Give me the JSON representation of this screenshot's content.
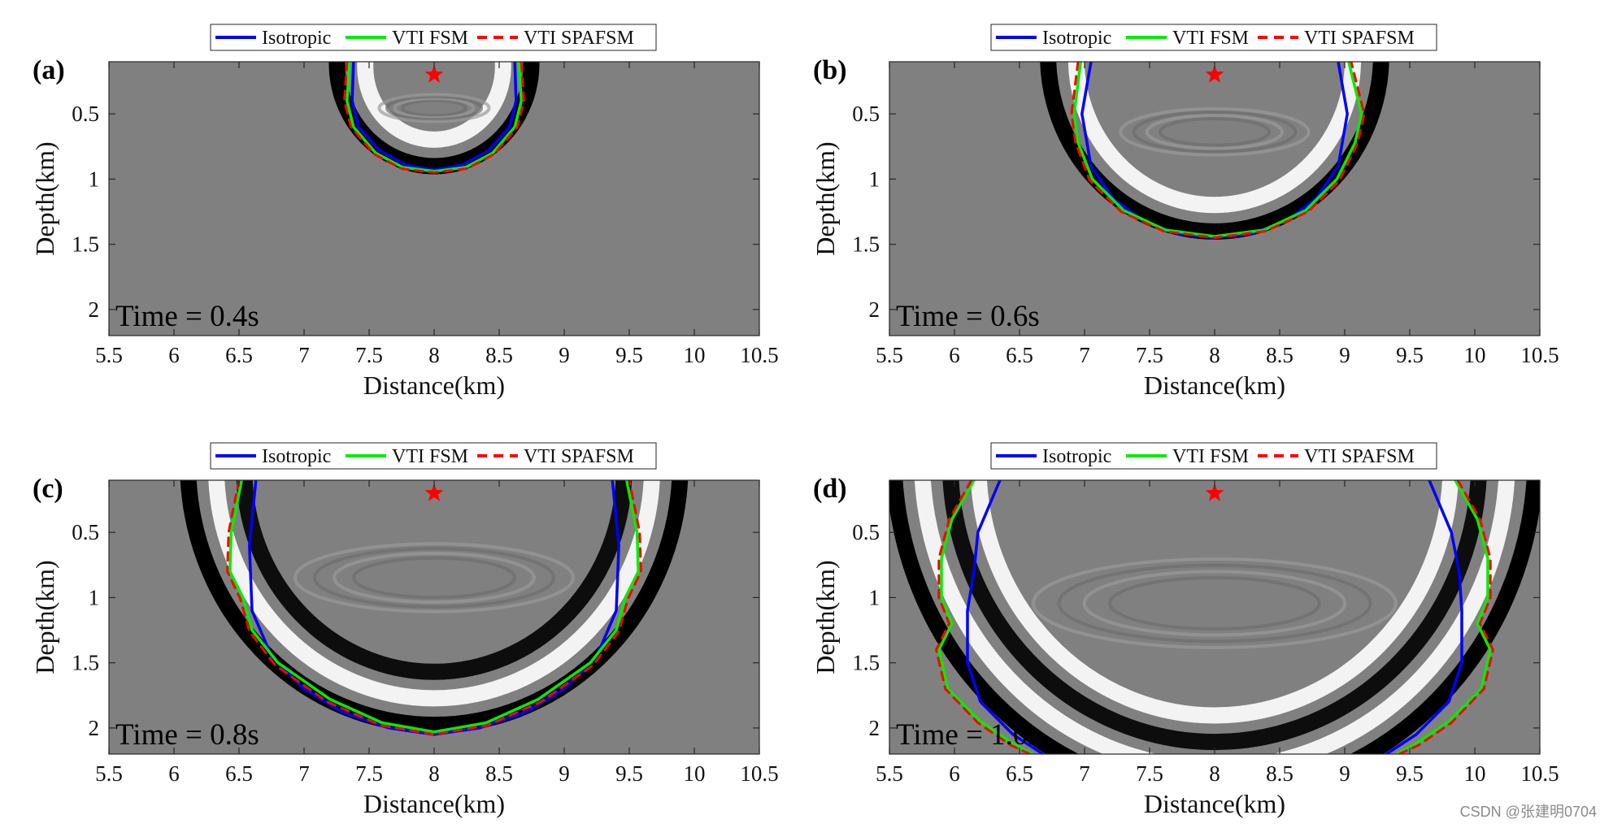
{
  "figure": {
    "legend_labels": [
      "Isotropic",
      "VTI FSM",
      "VTI SPAFSM"
    ],
    "xlabel": "Distance(km)",
    "ylabel": "Depth(km)",
    "watermark": "CSDN @张建明0704"
  },
  "colors": {
    "isotropic": "#0000ff",
    "vti_fsm": "#00ee00",
    "vti_spafsm": "#ff0000",
    "background": "#808080",
    "source": "#ff0000"
  },
  "chart_data": [
    {
      "type": "line",
      "panel": "(a)",
      "time_label": "Time = 0.4s",
      "xlabel": "Distance(km)",
      "ylabel": "Depth(km)",
      "xlim": [
        5.5,
        10.5
      ],
      "ylim": [
        0.1,
        2.2
      ],
      "xticks": [
        "5.5",
        "6",
        "6.5",
        "7",
        "7.5",
        "8",
        "8.5",
        "9",
        "9.5",
        "10",
        "10.5"
      ],
      "yticks": [
        "0.5",
        "1",
        "1.5",
        "2"
      ],
      "source": {
        "x": 8.0,
        "z": 0.2
      },
      "series": [
        {
          "name": "Isotropic",
          "x": [
            7.38,
            7.37,
            7.42,
            7.58,
            7.78,
            8.0,
            8.22,
            8.42,
            8.58,
            8.63,
            8.62
          ],
          "y": [
            0.1,
            0.4,
            0.6,
            0.78,
            0.89,
            0.93,
            0.89,
            0.78,
            0.6,
            0.4,
            0.1
          ]
        },
        {
          "name": "VTI FSM",
          "x": [
            7.35,
            7.33,
            7.38,
            7.55,
            7.76,
            8.0,
            8.24,
            8.45,
            8.62,
            8.67,
            8.65
          ],
          "y": [
            0.1,
            0.4,
            0.6,
            0.8,
            0.91,
            0.94,
            0.91,
            0.8,
            0.6,
            0.4,
            0.1
          ]
        },
        {
          "name": "VTI SPAFSM",
          "x": [
            7.33,
            7.31,
            7.36,
            7.54,
            7.75,
            8.0,
            8.25,
            8.46,
            8.64,
            8.69,
            8.67
          ],
          "y": [
            0.1,
            0.4,
            0.6,
            0.81,
            0.92,
            0.95,
            0.92,
            0.81,
            0.6,
            0.4,
            0.1
          ]
        }
      ]
    },
    {
      "type": "line",
      "panel": "(b)",
      "time_label": "Time = 0.6s",
      "xlabel": "Distance(km)",
      "ylabel": "Depth(km)",
      "xlim": [
        5.5,
        10.5
      ],
      "ylim": [
        0.1,
        2.2
      ],
      "xticks": [
        "5.5",
        "6",
        "6.5",
        "7",
        "7.5",
        "8",
        "8.5",
        "9",
        "9.5",
        "10",
        "10.5"
      ],
      "yticks": [
        "0.5",
        "1",
        "1.5",
        "2"
      ],
      "source": {
        "x": 8.0,
        "z": 0.2
      },
      "series": [
        {
          "name": "Isotropic",
          "x": [
            7.05,
            6.98,
            7.05,
            7.22,
            7.45,
            7.72,
            8.0,
            8.28,
            8.55,
            8.78,
            8.95,
            9.02,
            8.95
          ],
          "y": [
            0.1,
            0.5,
            0.9,
            1.15,
            1.32,
            1.42,
            1.45,
            1.42,
            1.32,
            1.15,
            0.9,
            0.5,
            0.1
          ]
        },
        {
          "name": "VTI FSM",
          "x": [
            6.97,
            6.92,
            6.95,
            7.06,
            7.3,
            7.62,
            8.0,
            8.38,
            8.7,
            8.94,
            9.08,
            9.13,
            9.03
          ],
          "y": [
            0.1,
            0.5,
            0.72,
            1.0,
            1.24,
            1.39,
            1.44,
            1.39,
            1.24,
            1.0,
            0.72,
            0.5,
            0.1
          ]
        },
        {
          "name": "VTI SPAFSM",
          "x": [
            6.95,
            6.9,
            6.93,
            7.04,
            7.28,
            7.61,
            8.0,
            8.39,
            8.72,
            8.96,
            9.1,
            9.15,
            9.05
          ],
          "y": [
            0.1,
            0.5,
            0.72,
            1.01,
            1.25,
            1.4,
            1.45,
            1.4,
            1.25,
            1.01,
            0.72,
            0.5,
            0.1
          ]
        }
      ]
    },
    {
      "type": "line",
      "panel": "(c)",
      "time_label": "Time = 0.8s",
      "xlabel": "Distance(km)",
      "ylabel": "Depth(km)",
      "xlim": [
        5.5,
        10.5
      ],
      "ylim": [
        0.1,
        2.2
      ],
      "xticks": [
        "5.5",
        "6",
        "6.5",
        "7",
        "7.5",
        "8",
        "8.5",
        "9",
        "9.5",
        "10",
        "10.5"
      ],
      "yticks": [
        "0.5",
        "1",
        "1.5",
        "2"
      ],
      "source": {
        "x": 8.0,
        "z": 0.2
      },
      "series": [
        {
          "name": "Isotropic",
          "x": [
            6.63,
            6.58,
            6.6,
            6.75,
            7.0,
            7.3,
            7.65,
            8.0,
            8.35,
            8.7,
            9.0,
            9.25,
            9.4,
            9.42,
            9.37
          ],
          "y": [
            0.1,
            0.6,
            1.1,
            1.45,
            1.7,
            1.88,
            2.0,
            2.05,
            2.0,
            1.88,
            1.7,
            1.45,
            1.1,
            0.6,
            0.1
          ]
        },
        {
          "name": "VTI FSM",
          "x": [
            6.52,
            6.44,
            6.43,
            6.53,
            6.6,
            6.8,
            7.2,
            7.6,
            8.0,
            8.4,
            8.8,
            9.2,
            9.4,
            9.47,
            9.57,
            9.56,
            9.48
          ],
          "y": [
            0.1,
            0.5,
            0.8,
            1.0,
            1.25,
            1.5,
            1.78,
            1.96,
            2.03,
            1.96,
            1.78,
            1.5,
            1.25,
            1.0,
            0.8,
            0.5,
            0.1
          ]
        },
        {
          "name": "VTI SPAFSM",
          "x": [
            6.5,
            6.42,
            6.41,
            6.51,
            6.58,
            6.78,
            7.18,
            7.59,
            8.0,
            8.41,
            8.82,
            9.22,
            9.42,
            9.49,
            9.59,
            9.58,
            9.5
          ],
          "y": [
            0.1,
            0.5,
            0.8,
            1.01,
            1.26,
            1.52,
            1.8,
            1.98,
            2.05,
            1.98,
            1.8,
            1.52,
            1.26,
            1.01,
            0.8,
            0.5,
            0.1
          ]
        }
      ]
    },
    {
      "type": "line",
      "panel": "(d)",
      "time_label": "Time = 1.0s",
      "xlabel": "Distance(km)",
      "ylabel": "Depth(km)",
      "xlim": [
        5.5,
        10.5
      ],
      "ylim": [
        0.1,
        2.2
      ],
      "xticks": [
        "5.5",
        "6",
        "6.5",
        "7",
        "7.5",
        "8",
        "8.5",
        "9",
        "9.5",
        "10",
        "10.5"
      ],
      "yticks": [
        "0.5",
        "1",
        "1.5",
        "2"
      ],
      "source": {
        "x": 8.0,
        "z": 0.2
      },
      "series": [
        {
          "name": "Isotropic",
          "x": [
            6.35,
            6.18,
            6.15,
            6.1,
            6.1,
            6.2,
            6.45,
            6.68
          ],
          "y": [
            0.1,
            0.5,
            0.8,
            1.1,
            1.5,
            1.8,
            2.05,
            2.2
          ]
        },
        {
          "name": "Isotropic",
          "x": [
            9.65,
            9.82,
            9.88,
            9.9,
            9.9,
            9.8,
            9.55,
            9.32
          ],
          "y": [
            0.1,
            0.5,
            0.8,
            1.1,
            1.5,
            1.8,
            2.05,
            2.2
          ]
        },
        {
          "name": "VTI FSM",
          "x": [
            6.15,
            5.98,
            5.9,
            5.9,
            5.98,
            5.88,
            5.95,
            6.2,
            6.45,
            6.6
          ],
          "y": [
            0.1,
            0.4,
            0.7,
            1.0,
            1.2,
            1.4,
            1.7,
            1.95,
            2.12,
            2.2
          ]
        },
        {
          "name": "VTI FSM",
          "x": [
            9.85,
            10.02,
            10.1,
            10.1,
            10.02,
            10.12,
            10.05,
            9.8,
            9.55,
            9.4
          ],
          "y": [
            0.1,
            0.4,
            0.7,
            1.0,
            1.2,
            1.4,
            1.7,
            1.95,
            2.12,
            2.2
          ]
        },
        {
          "name": "VTI SPAFSM",
          "x": [
            6.13,
            5.96,
            5.88,
            5.88,
            5.96,
            5.86,
            5.93,
            6.18,
            6.43,
            6.58
          ],
          "y": [
            0.1,
            0.4,
            0.7,
            1.0,
            1.2,
            1.4,
            1.7,
            1.96,
            2.13,
            2.2
          ]
        },
        {
          "name": "VTI SPAFSM",
          "x": [
            9.87,
            10.04,
            10.12,
            10.12,
            10.04,
            10.14,
            10.07,
            9.82,
            9.57,
            9.42
          ],
          "y": [
            0.1,
            0.4,
            0.7,
            1.0,
            1.2,
            1.4,
            1.7,
            1.96,
            2.13,
            2.2
          ]
        }
      ]
    }
  ]
}
